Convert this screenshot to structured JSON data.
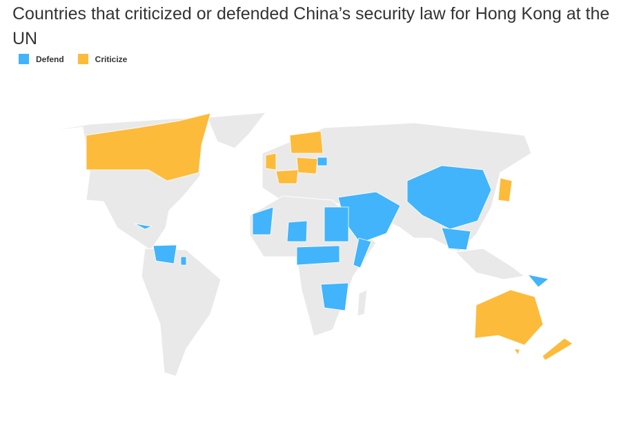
{
  "title": "Countries that criticized or defended China’s security law for Hong Kong at the UN",
  "legend": [
    {
      "label": "Defend",
      "color": "#41b4fb"
    },
    {
      "label": "Criticize",
      "color": "#fdbb3b"
    }
  ]
}
